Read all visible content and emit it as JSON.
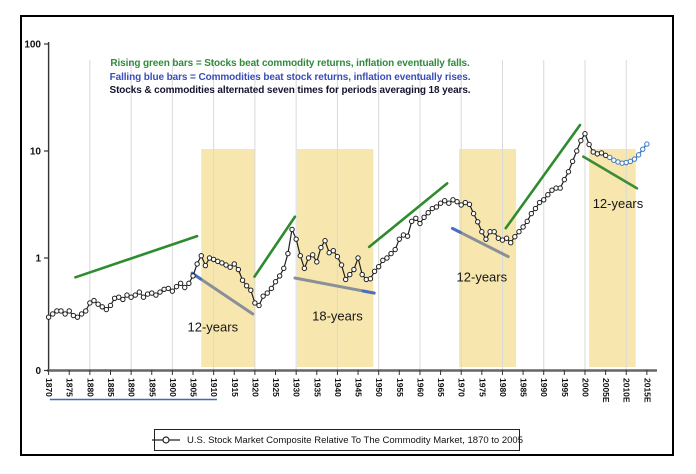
{
  "notes": [
    {
      "text": "Rising green bars = Stocks beat commodity returns, inflation eventually falls.",
      "color": "#2e8b3d"
    },
    {
      "text": "Falling blue bars = Commodities beat stock returns, inflation eventually rises.",
      "color": "#3a4db8"
    },
    {
      "text": "Stocks & commodities alternated seven times for periods averaging 18 years.",
      "color": "#14142e"
    }
  ],
  "legend": {
    "marker": "line-circle-marker",
    "label": "U.S. Stock Market Composite Relative To The Commodity Market, 1870 to 2005"
  },
  "chart_data": {
    "type": "line",
    "y_scale": "log",
    "ylim": [
      0.1,
      100
    ],
    "grid": "vertical-decades",
    "colors": {
      "band": "#f7e7ae",
      "grid": "#d9d9d9",
      "up": "#2e8b2e",
      "down_gray": "#8a8f99",
      "down_blue_tip": "#4a6fbd",
      "actual": "#1f1f1f",
      "estimate": "#3a76c4",
      "underline": "#3b6fb5"
    },
    "y_ticks": [
      {
        "label": "100",
        "value": 100
      },
      {
        "label": "10",
        "value": 10
      },
      {
        "label": "1",
        "value": 1
      },
      {
        "label": "0",
        "value": 0.1
      }
    ],
    "x_ticks": [
      "1870",
      "1875",
      "1880",
      "1885",
      "1890",
      "1895",
      "1900",
      "1905",
      "1910",
      "1915",
      "1920",
      "1925",
      "1930",
      "1935",
      "1940",
      "1945",
      "1950",
      "1955",
      "1960",
      "1965",
      "1970",
      "1975",
      "1980",
      "1985",
      "1990",
      "1995",
      "2000",
      "2005E",
      "2010E",
      "2015E"
    ],
    "bands": [
      {
        "from": 1907.0,
        "to": 1920.0
      },
      {
        "from": 1930.2,
        "to": 1948.7
      },
      {
        "from": 1969.5,
        "to": 1983.3
      },
      {
        "from": 2001.0,
        "to": 2012.3
      }
    ],
    "trend_lines": [
      {
        "name": "uptrend-1876-1906",
        "color": "#2e8b2e",
        "width": 2.6,
        "from": {
          "year": 1876.5,
          "value": 0.66
        },
        "to": {
          "year": 1906.0,
          "value": 1.6
        }
      },
      {
        "name": "downtrend-1905-1920",
        "color": "#8a8f99",
        "width": 3,
        "from": {
          "year": 1904.8,
          "value": 0.72
        },
        "to": {
          "year": 1919.5,
          "value": 0.3
        },
        "tip": {
          "pos": "start",
          "color": "#4a6fbd"
        }
      },
      {
        "name": "uptrend-1920-1930",
        "color": "#2e8b2e",
        "width": 2.6,
        "from": {
          "year": 1919.9,
          "value": 0.67
        },
        "to": {
          "year": 1929.7,
          "value": 2.43
        }
      },
      {
        "name": "downtrend-1930-1949",
        "color": "#8a8f99",
        "width": 3,
        "from": {
          "year": 1929.7,
          "value": 0.65
        },
        "to": {
          "year": 1948.9,
          "value": 0.47
        },
        "tip": {
          "pos": "end",
          "color": "#4a6fbd"
        }
      },
      {
        "name": "uptrend-1948-1967",
        "color": "#2e8b2e",
        "width": 2.6,
        "from": {
          "year": 1947.7,
          "value": 1.27
        },
        "to": {
          "year": 1966.6,
          "value": 4.98
        }
      },
      {
        "name": "downtrend-1968-1981",
        "color": "#8a8f99",
        "width": 3,
        "from": {
          "year": 1967.9,
          "value": 1.89
        },
        "to": {
          "year": 1981.4,
          "value": 1.03
        },
        "tip": {
          "pos": "start",
          "color": "#4a6fbd"
        }
      },
      {
        "name": "uptrend-1981-1999",
        "color": "#2e8b2e",
        "width": 2.6,
        "from": {
          "year": 1980.8,
          "value": 1.9
        },
        "to": {
          "year": 1998.8,
          "value": 17.5
        }
      },
      {
        "name": "downtrend-2000-2013",
        "color": "#3a8c3a",
        "width": 2.6,
        "from": {
          "year": 1999.6,
          "value": 8.85
        },
        "to": {
          "year": 2012.6,
          "value": 4.48
        }
      }
    ],
    "annotations": [
      {
        "text": "12-years",
        "year": 1909.8,
        "value": 0.225
      },
      {
        "text": "18-years",
        "year": 1940.0,
        "value": 0.285
      },
      {
        "text": "12-years",
        "year": 1975.0,
        "value": 0.66
      },
      {
        "text": "12-years",
        "year": 2008.0,
        "value": 3.2
      }
    ],
    "underline": {
      "from": 1870.3,
      "to": 1910.8
    },
    "series": [
      {
        "name": "U.S. Stock Market Composite Relative To The Commodity Market (actual)",
        "color": "#1f1f1f",
        "start_year": 1870,
        "values": [
          0.28,
          0.3,
          0.32,
          0.32,
          0.3,
          0.32,
          0.29,
          0.28,
          0.3,
          0.32,
          0.38,
          0.4,
          0.37,
          0.35,
          0.33,
          0.36,
          0.42,
          0.43,
          0.41,
          0.45,
          0.43,
          0.45,
          0.48,
          0.43,
          0.46,
          0.47,
          0.45,
          0.48,
          0.51,
          0.52,
          0.49,
          0.54,
          0.58,
          0.53,
          0.58,
          0.68,
          0.88,
          1.05,
          0.85,
          1.0,
          0.97,
          0.93,
          0.9,
          0.86,
          0.82,
          0.88,
          0.78,
          0.62,
          0.55,
          0.5,
          0.38,
          0.36,
          0.44,
          0.47,
          0.52,
          0.6,
          0.68,
          0.8,
          1.1,
          1.85,
          1.5,
          1.05,
          0.8,
          1.0,
          1.07,
          0.92,
          1.25,
          1.45,
          1.12,
          1.17,
          1.03,
          0.86,
          0.63,
          0.7,
          0.78,
          1.0,
          0.7,
          0.63,
          0.64,
          0.75,
          0.83,
          0.95,
          1.0,
          1.1,
          1.2,
          1.5,
          1.64,
          1.6,
          2.2,
          2.35,
          2.1,
          2.4,
          2.65,
          2.9,
          3.0,
          3.25,
          3.43,
          3.25,
          3.5,
          3.36,
          3.13,
          3.3,
          3.17,
          2.6,
          2.18,
          1.76,
          1.5,
          1.76,
          1.76,
          1.53,
          1.47,
          1.53,
          1.39,
          1.58,
          1.76,
          1.95,
          2.2,
          2.6,
          2.9,
          3.3,
          3.5,
          3.9,
          4.3,
          4.5,
          4.5,
          5.4,
          6.4,
          8.0,
          10.0,
          12.5,
          14.5,
          11.5,
          9.8,
          9.4,
          9.6,
          9.1
        ]
      },
      {
        "name": "estimate (2005E-2015E)",
        "color": "#3a76c4",
        "start_year": 2005,
        "values": [
          9.1,
          8.7,
          8.2,
          7.9,
          7.7,
          7.8,
          8.0,
          8.4,
          9.2,
          10.4,
          11.6
        ]
      }
    ]
  }
}
